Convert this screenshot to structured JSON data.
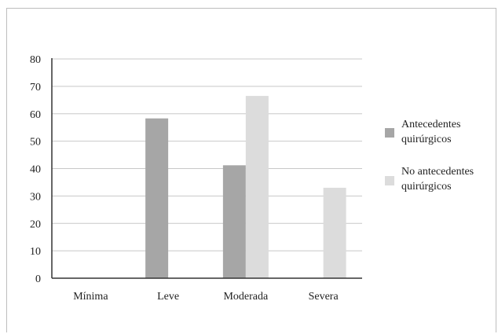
{
  "chart_data": {
    "type": "bar",
    "categories": [
      "Mínima",
      "Leve",
      "Moderada",
      "Severa"
    ],
    "series": [
      {
        "name": "Antecedentes quirúrgicos",
        "legend_lines": [
          "Antecedentes",
          "quirúrgicos"
        ],
        "values": [
          0,
          58.3,
          41.2,
          0
        ],
        "color": "#a6a6a6"
      },
      {
        "name": "No antecedentes quirúrgicos",
        "legend_lines": [
          "No antecedentes",
          "quirúrgicos"
        ],
        "values": [
          0,
          0,
          66.5,
          33
        ],
        "color": "#dcdcdc"
      }
    ],
    "ylim": [
      0,
      80
    ],
    "yticks": [
      "0",
      "10",
      "20",
      "30",
      "40",
      "50",
      "60",
      "70",
      "80"
    ],
    "grid": true,
    "legend_position": "right",
    "title": "",
    "xlabel": "",
    "ylabel": ""
  }
}
